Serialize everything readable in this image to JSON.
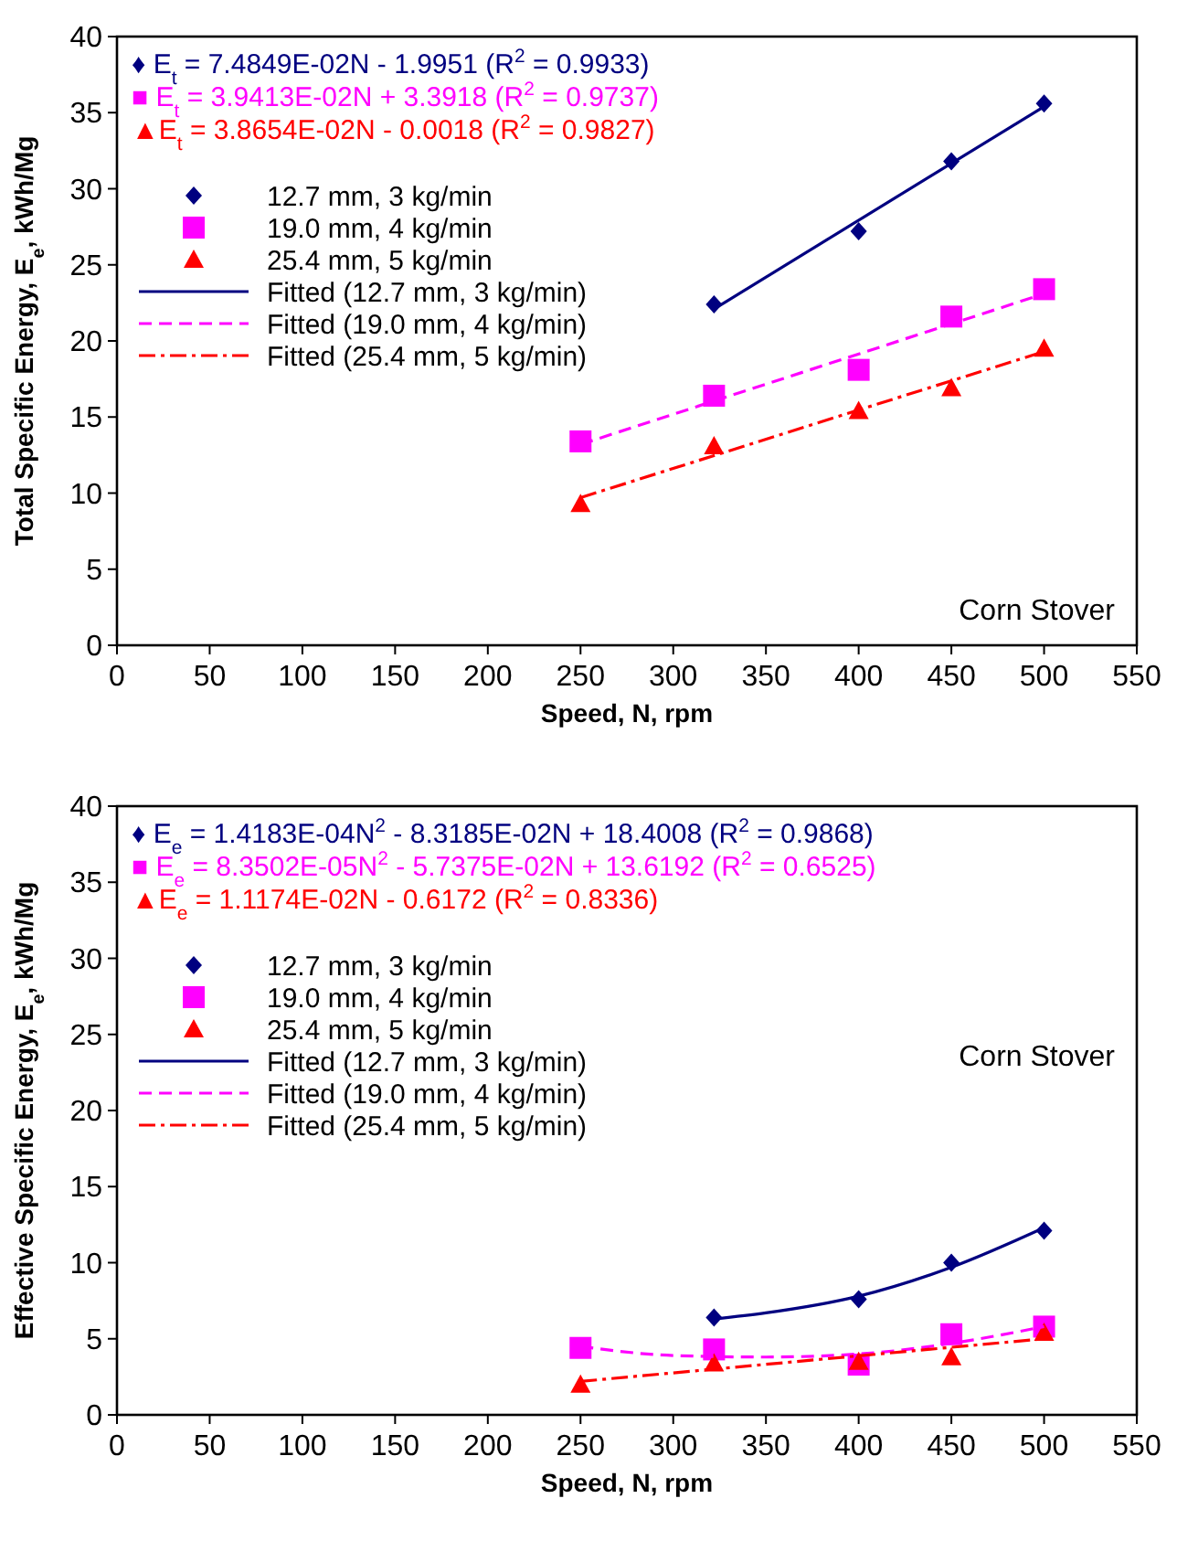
{
  "chart_data": [
    {
      "type": "scatter",
      "xlabel": "Speed, N, rpm",
      "ylabel": "Total Specific Energy, E$_{e}$, kWh/Mg",
      "xlim": [
        0,
        550
      ],
      "xticks": [
        0,
        50,
        100,
        150,
        200,
        250,
        300,
        350,
        400,
        450,
        500,
        550
      ],
      "ylim": [
        0,
        40
      ],
      "yticks": [
        0,
        5,
        10,
        15,
        20,
        25,
        30,
        35,
        40
      ],
      "grid": false,
      "legend": "top left",
      "series": [
        {
          "name": "12.7 mm, 3 kg/min",
          "color": "#000080",
          "marker": "diamond",
          "x": [
            322,
            400,
            450,
            500
          ],
          "values": [
            22.4,
            27.2,
            31.8,
            35.6
          ]
        },
        {
          "name": "19.0 mm, 4 kg/min",
          "color": "#ff00ff",
          "marker": "square",
          "x": [
            250,
            322,
            400,
            450,
            500
          ],
          "values": [
            13.4,
            16.4,
            18.1,
            21.6,
            23.4
          ]
        },
        {
          "name": "25.4 mm, 5 kg/min",
          "color": "#ff0000",
          "marker": "triangle",
          "x": [
            250,
            322,
            400,
            450,
            500
          ],
          "values": [
            9.3,
            13.1,
            15.4,
            16.9,
            19.5
          ]
        },
        {
          "name": "Fitted (12.7 mm, 3 kg/min)",
          "type": "line",
          "color": "#000080",
          "line_style": "solid",
          "marker": "none",
          "x": [
            322,
            500
          ],
          "values": [
            22.1,
            35.4
          ]
        },
        {
          "name": "Fitted (19.0 mm, 4 kg/min)",
          "type": "line",
          "color": "#ff00ff",
          "line_style": "dashed",
          "marker": "none",
          "x": [
            250,
            500
          ],
          "values": [
            13.2,
            23.1
          ]
        },
        {
          "name": "Fitted (25.4 mm, 5 kg/min)",
          "type": "line",
          "color": "#ff0000",
          "line_style": "dashdot",
          "marker": "none",
          "x": [
            250,
            500
          ],
          "values": [
            9.7,
            19.3
          ]
        }
      ],
      "annotations": [
        "♦ E$_{t}$ = 7.4849E-02N - 1.9951 (R$^{2}$ = 0.9933)",
        "■ E$_{t}$ = 3.9413E-02N + 3.3918 (R$^{2}$ = 0.9737)",
        "▲E$_{t}$ = 3.8654E-02N - 0.0018 (R$^{2}$ = 0.9827)",
        "Corn Stover"
      ]
    },
    {
      "type": "scatter",
      "xlabel": "Speed, N, rpm",
      "ylabel": "Effective Specific Energy, E$_{e}$, kWh/Mg",
      "xlim": [
        0,
        550
      ],
      "xticks": [
        0,
        50,
        100,
        150,
        200,
        250,
        300,
        350,
        400,
        450,
        500,
        550
      ],
      "ylim": [
        0,
        40
      ],
      "yticks": [
        0,
        5,
        10,
        15,
        20,
        25,
        30,
        35,
        40
      ],
      "grid": false,
      "legend": "top left",
      "series": [
        {
          "name": "12.7 mm, 3 kg/min",
          "color": "#000080",
          "marker": "diamond",
          "x": [
            322,
            400,
            450,
            500
          ],
          "values": [
            6.4,
            7.6,
            10.0,
            12.1
          ]
        },
        {
          "name": "19.0 mm, 4 kg/min",
          "color": "#ff00ff",
          "marker": "square",
          "x": [
            250,
            322,
            400,
            450,
            500
          ],
          "values": [
            4.4,
            4.3,
            3.3,
            5.3,
            5.8
          ]
        },
        {
          "name": "25.4 mm, 5 kg/min",
          "color": "#ff0000",
          "marker": "triangle",
          "x": [
            250,
            322,
            400,
            450,
            500
          ],
          "values": [
            2.0,
            3.4,
            3.5,
            3.8,
            5.4
          ]
        },
        {
          "name": "Fitted (12.7 mm, 3 kg/min)",
          "type": "line",
          "color": "#000080",
          "line_style": "solid",
          "marker": "none",
          "x": [
            322,
            350,
            400,
            450,
            500
          ],
          "values": [
            6.3,
            6.7,
            7.8,
            9.7,
            12.3
          ]
        },
        {
          "name": "Fitted (19.0 mm, 4 kg/min)",
          "type": "line",
          "color": "#ff00ff",
          "line_style": "dashed",
          "marker": "none",
          "x": [
            250,
            300,
            350,
            400,
            450,
            500
          ],
          "values": [
            4.5,
            3.9,
            3.8,
            4.0,
            4.7,
            5.8
          ]
        },
        {
          "name": "Fitted (25.4 mm, 5 kg/min)",
          "type": "line",
          "color": "#ff0000",
          "line_style": "dashdot",
          "marker": "none",
          "x": [
            250,
            500
          ],
          "values": [
            2.2,
            5.0
          ]
        }
      ],
      "annotations": [
        "♦ E$_{e}$ = 1.4183E-04N$^{2}$ - 8.3185E-02N + 18.4008 (R$^{2}$ = 0.9868)",
        "■ E$_{e}$ = 8.3502E-05N$^{2}$ - 5.7375E-02N + 13.6192 (R$^{2}$ = 0.6525)",
        "▲E$_{e}$ = 1.1174E-02N - 0.6172 (R$^{2}$ = 0.8336)",
        "Corn Stover"
      ]
    }
  ]
}
